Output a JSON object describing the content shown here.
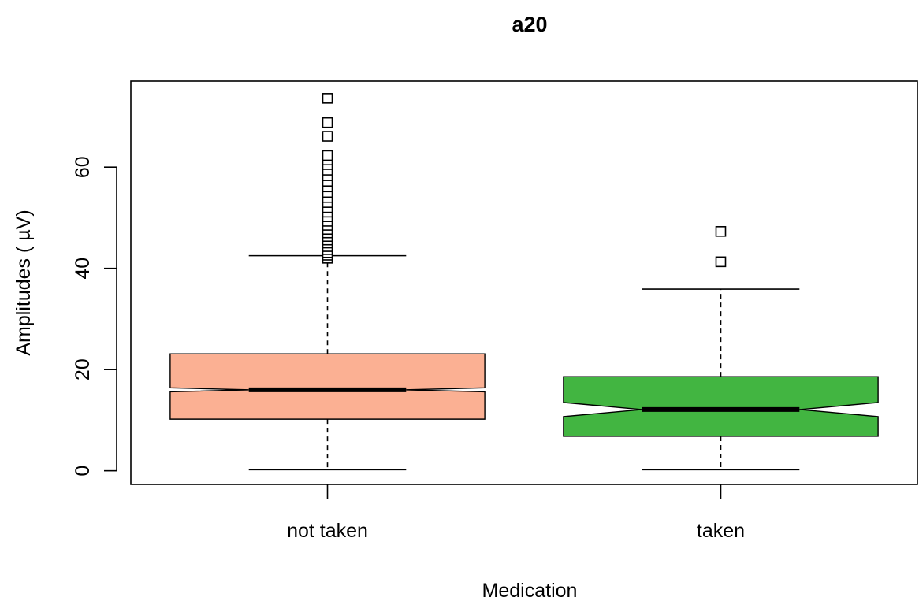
{
  "chart_data": {
    "type": "boxplot",
    "title": "a20",
    "xlabel": "Medication",
    "ylabel": "Amplitudes ( µV)",
    "ylim": [
      -2.7,
      77
    ],
    "yticks": [
      0,
      20,
      40,
      60
    ],
    "notched": true,
    "grid": false,
    "legend": "none",
    "categories": [
      "not taken",
      "taken"
    ],
    "series": [
      {
        "category": "not taken",
        "color": "#FBB093",
        "whisker_low": 0.2,
        "q1": 10.2,
        "notch_low": 15.6,
        "median": 16.0,
        "notch_high": 16.4,
        "q3": 23.1,
        "whisker_high": 42.5,
        "outliers": [
          42.0,
          42.6,
          43.1,
          43.7,
          44.3,
          45.0,
          45.6,
          46.3,
          47.0,
          47.7,
          48.5,
          49.3,
          50.2,
          51.1,
          52.0,
          53.0,
          54.0,
          55.0,
          56.1,
          57.2,
          58.3,
          59.4,
          60.5,
          61.4,
          62.3,
          66.1,
          68.8,
          73.6
        ]
      },
      {
        "category": "taken",
        "color": "#42B541",
        "whisker_low": 0.2,
        "q1": 6.8,
        "notch_low": 10.7,
        "median": 12.1,
        "notch_high": 13.5,
        "q3": 18.6,
        "whisker_high": 35.9,
        "outliers": [
          41.3,
          47.3
        ]
      }
    ]
  }
}
